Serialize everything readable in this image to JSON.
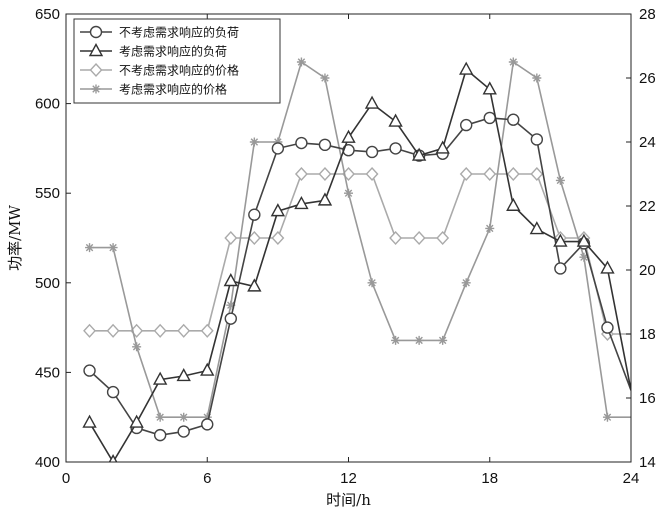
{
  "chart_data": {
    "type": "line",
    "title": "",
    "xlabel": "时间/h",
    "ylabel": "功率/MW",
    "xlim": [
      0,
      24
    ],
    "ylim": [
      400,
      650
    ],
    "y2lim": [
      14,
      28
    ],
    "xticks": [
      0,
      6,
      12,
      18,
      24
    ],
    "yticks": [
      400,
      450,
      500,
      550,
      600,
      650
    ],
    "y2ticks": [
      14,
      16,
      18,
      20,
      22,
      24,
      26,
      28
    ],
    "grid": false,
    "legend_position": "top-left",
    "series": [
      {
        "name": "不考虑需求响应的负荷",
        "axis": "left",
        "color": "#444444",
        "marker": "circle",
        "x": [
          1,
          2,
          3,
          4,
          5,
          6,
          7,
          8,
          9,
          10,
          11,
          12,
          13,
          14,
          15,
          16,
          17,
          18,
          19,
          20,
          21,
          22,
          23,
          24
        ],
        "y": [
          451,
          439,
          419,
          415,
          417,
          421,
          480,
          538,
          575,
          578,
          577,
          574,
          573,
          575,
          571,
          572,
          588,
          592,
          591,
          580,
          508,
          522,
          475,
          440
        ]
      },
      {
        "name": "考虑需求响应的负荷",
        "axis": "left",
        "color": "#333333",
        "marker": "triangle",
        "x": [
          1,
          2,
          3,
          4,
          5,
          6,
          7,
          8,
          9,
          10,
          11,
          12,
          13,
          14,
          15,
          16,
          17,
          18,
          19,
          20,
          21,
          22,
          23,
          24
        ],
        "y": [
          422,
          400,
          422,
          446,
          448,
          451,
          501,
          498,
          540,
          544,
          546,
          581,
          600,
          590,
          571,
          575,
          619,
          608,
          543,
          530,
          523,
          523,
          508,
          440
        ]
      },
      {
        "name": "不考虑需求响应的价格",
        "axis": "right",
        "color": "#aaaaaa",
        "marker": "diamond",
        "x": [
          1,
          2,
          3,
          4,
          5,
          6,
          7,
          8,
          9,
          10,
          11,
          12,
          13,
          14,
          15,
          16,
          17,
          18,
          19,
          20,
          21,
          22,
          23,
          24
        ],
        "y": [
          18.1,
          18.1,
          18.1,
          18.1,
          18.1,
          18.1,
          21,
          21,
          21,
          23,
          23,
          23,
          23,
          21,
          21,
          21,
          23,
          23,
          23,
          23,
          21,
          21,
          18,
          18
        ]
      },
      {
        "name": "考虑需求响应的价格",
        "axis": "right",
        "color": "#999999",
        "marker": "star",
        "x": [
          1,
          2,
          3,
          4,
          5,
          6,
          7,
          8,
          9,
          10,
          11,
          12,
          13,
          14,
          15,
          16,
          17,
          18,
          19,
          20,
          21,
          22,
          23,
          24
        ],
        "y": [
          20.7,
          20.7,
          17.6,
          15.4,
          15.4,
          15.4,
          18.9,
          24,
          24,
          26.5,
          26,
          22.4,
          19.6,
          17.8,
          17.8,
          17.8,
          19.6,
          21.3,
          26.5,
          26,
          22.8,
          20.4,
          15.4,
          15.4
        ]
      }
    ]
  }
}
